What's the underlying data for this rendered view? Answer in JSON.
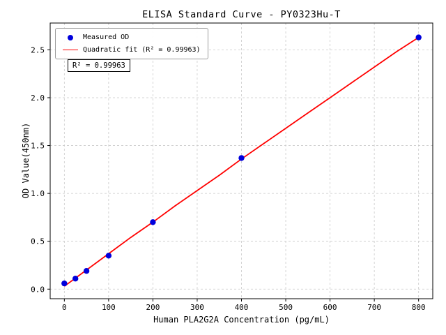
{
  "chart_data": {
    "type": "scatter",
    "title": "ELISA Standard Curve - PY0323Hu-T",
    "xlabel": "Human PLA2G2A Concentration (pg/mL)",
    "ylabel": "OD Value(450nm)",
    "xlim": [
      -32,
      832
    ],
    "ylim": [
      -0.1,
      2.78
    ],
    "xticks": [
      0,
      100,
      200,
      300,
      400,
      500,
      600,
      700,
      800
    ],
    "yticks": [
      0,
      0.5,
      1,
      1.5,
      2,
      2.5
    ],
    "grid": true,
    "grid_style": "dashed",
    "legend_position": "upper left",
    "annotation": "R² = 0.99963",
    "r_squared": 0.99963,
    "series": [
      {
        "name": "Measured OD",
        "type": "scatter",
        "marker": "circle",
        "color": "#0000dc",
        "x": [
          0,
          25,
          50,
          100,
          200,
          400,
          800
        ],
        "y": [
          0.06,
          0.11,
          0.19,
          0.35,
          0.7,
          1.37,
          2.63
        ]
      },
      {
        "name": "Quadratic fit (R² = 0.99963)",
        "type": "line",
        "color": "#ff0000",
        "x": [
          0,
          50,
          100,
          150,
          200,
          250,
          300,
          350,
          400,
          450,
          500,
          550,
          600,
          650,
          700,
          750,
          800
        ],
        "y": [
          0.03,
          0.2,
          0.37,
          0.54,
          0.7,
          0.87,
          1.03,
          1.19,
          1.36,
          1.52,
          1.68,
          1.84,
          2.0,
          2.16,
          2.32,
          2.48,
          2.63
        ]
      }
    ]
  },
  "legend": {
    "items": [
      {
        "label": "Measured OD",
        "marker": "dot",
        "color": "#0000dc"
      },
      {
        "label": "Quadratic fit (R² = 0.99963)",
        "marker": "line",
        "color": "#ff0000"
      }
    ]
  }
}
